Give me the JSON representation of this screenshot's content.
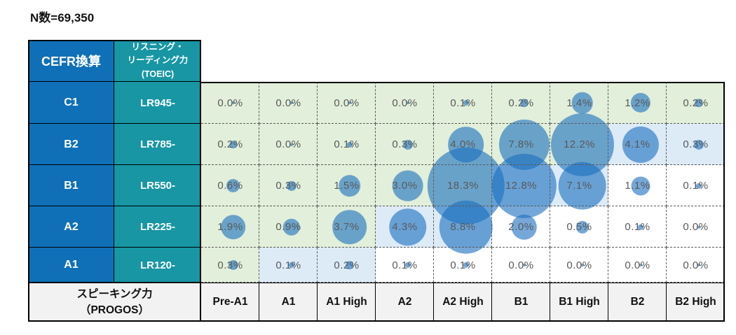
{
  "title": "N数=69,350",
  "colors": {
    "cefr_header_blue": "#0f70b8",
    "lr_header_teal": "#1896a4",
    "cell_green": "#e2efda",
    "cell_blue": "#ddebf7",
    "cell_white": "#ffffff",
    "footer_gray": "#f2f2f2",
    "bubble_blue": "rgba(25,110,190,0.6)",
    "value_text": "#595959"
  },
  "table": {
    "corner_header": "CEFR換算",
    "lr_header_lines": [
      "リスニング・",
      "リーディング力",
      "(TOEIC)"
    ],
    "rows": [
      {
        "cefr": "C1",
        "lr": "LR945-",
        "values": [
          "0.0%",
          "0.0%",
          "0.0%",
          "0.0%",
          "0.1%",
          "0.2%",
          "1.4%",
          "1.2%",
          "0.2%"
        ]
      },
      {
        "cefr": "B2",
        "lr": "LR785-",
        "values": [
          "0.2%",
          "0.0%",
          "0.1%",
          "0.3%",
          "4.0%",
          "7.8%",
          "12.2%",
          "4.1%",
          "0.3%"
        ]
      },
      {
        "cefr": "B1",
        "lr": "LR550-",
        "values": [
          "0.6%",
          "0.3%",
          "1.5%",
          "3.0%",
          "18.3%",
          "12.8%",
          "7.1%",
          "1.1%",
          "0.1%"
        ]
      },
      {
        "cefr": "A2",
        "lr": "LR225-",
        "values": [
          "1.9%",
          "0.9%",
          "3.7%",
          "4.3%",
          "8.8%",
          "2.0%",
          "0.5%",
          "0.1%",
          "0.0%"
        ]
      },
      {
        "cefr": "A1",
        "lr": "LR120-",
        "values": [
          "0.3%",
          "0.1%",
          "0.2%",
          "0.1%",
          "0.1%",
          "0.0%",
          "0.0%",
          "0.0%",
          "0.0%"
        ]
      }
    ],
    "shading": [
      [
        "g",
        "g",
        "g",
        "g",
        "g",
        "g",
        "g",
        "g",
        "g"
      ],
      [
        "g",
        "g",
        "g",
        "g",
        "g",
        "g",
        "g",
        "b",
        "b"
      ],
      [
        "g",
        "g",
        "g",
        "g",
        "g",
        "b",
        "b",
        "w",
        "w"
      ],
      [
        "g",
        "g",
        "g",
        "b",
        "b",
        "w",
        "w",
        "w",
        "w"
      ],
      [
        "g",
        "b",
        "b",
        "w",
        "w",
        "w",
        "w",
        "w",
        "w"
      ]
    ],
    "footer": {
      "label_lines": [
        "スピーキング力",
        "（PROGOS）"
      ],
      "columns": [
        "Pre-A1",
        "A1",
        "A1 High",
        "A2",
        "A2 High",
        "B1",
        "B1 High",
        "B2",
        "B2 High"
      ]
    }
  },
  "chart_data": {
    "type": "heatmap",
    "subtype": "bubble-matrix",
    "title": "N数=69,350",
    "n_total": 69350,
    "x_axis_label": "スピーキング力（PROGOS）",
    "x_categories": [
      "Pre-A1",
      "A1",
      "A1 High",
      "A2",
      "A2 High",
      "B1",
      "B1 High",
      "B2",
      "B2 High"
    ],
    "y_axis_label": "CEFR換算",
    "y_categories": [
      "C1",
      "B2",
      "B1",
      "A2",
      "A1"
    ],
    "y_secondary_axis_label": "リスニング・リーディング力（TOEIC）",
    "y_secondary_labels": [
      "LR945-",
      "LR785-",
      "LR550-",
      "LR225-",
      "LR120-"
    ],
    "values_percent": [
      [
        0.0,
        0.0,
        0.0,
        0.0,
        0.1,
        0.2,
        1.4,
        1.2,
        0.2
      ],
      [
        0.2,
        0.0,
        0.1,
        0.3,
        4.0,
        7.8,
        12.2,
        4.1,
        0.3
      ],
      [
        0.6,
        0.3,
        1.5,
        3.0,
        18.3,
        12.8,
        7.1,
        1.1,
        0.1
      ],
      [
        1.9,
        0.9,
        3.7,
        4.3,
        8.8,
        2.0,
        0.5,
        0.1,
        0.0
      ],
      [
        0.3,
        0.1,
        0.2,
        0.1,
        0.1,
        0.0,
        0.0,
        0.0,
        0.0
      ]
    ],
    "bubble_size_rule": "diameter proportional to sqrt(value)",
    "cell_highlight_legend": {
      "g": "speaking below L&R level (light green)",
      "b": "speaking matches L&R level (light blue)",
      "w": "speaking above L&R level (white)"
    },
    "grid": true,
    "legend_position": "none"
  }
}
